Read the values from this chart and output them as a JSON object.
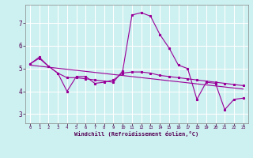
{
  "xlabel": "Windchill (Refroidissement éolien,°C)",
  "background_color": "#cdf0f0",
  "grid_color": "#ffffff",
  "line_color": "#990099",
  "xlim": [
    -0.5,
    23.5
  ],
  "ylim": [
    2.6,
    7.8
  ],
  "yticks": [
    3,
    4,
    5,
    6,
    7
  ],
  "xticks": [
    0,
    1,
    2,
    3,
    4,
    5,
    6,
    7,
    8,
    9,
    10,
    11,
    12,
    13,
    14,
    15,
    16,
    17,
    18,
    19,
    20,
    21,
    22,
    23
  ],
  "series1_x": [
    0,
    1,
    2,
    3,
    4,
    5,
    6,
    7,
    8,
    9,
    10,
    11,
    12,
    13,
    14,
    15,
    16,
    17,
    18,
    19,
    20,
    21,
    22,
    23
  ],
  "series1_y": [
    5.2,
    5.45,
    5.1,
    4.8,
    4.6,
    4.6,
    4.55,
    4.5,
    4.45,
    4.4,
    4.9,
    7.35,
    7.45,
    7.3,
    6.5,
    5.9,
    5.15,
    5.0,
    3.65,
    4.4,
    4.35,
    3.2,
    3.65,
    3.7
  ],
  "series2_x": [
    0,
    1,
    2,
    3,
    4,
    5,
    6,
    7,
    8,
    9,
    10,
    11,
    12,
    13,
    14,
    15,
    16,
    17,
    18,
    19,
    20,
    21,
    22,
    23
  ],
  "series2_y": [
    5.2,
    5.5,
    5.1,
    4.8,
    4.0,
    4.65,
    4.65,
    4.35,
    4.4,
    4.5,
    4.8,
    4.85,
    4.85,
    4.8,
    4.7,
    4.65,
    4.6,
    4.55,
    4.5,
    4.45,
    4.4,
    4.35,
    4.3,
    4.25
  ],
  "series3_x": [
    0,
    23
  ],
  "series3_y": [
    5.15,
    4.1
  ]
}
